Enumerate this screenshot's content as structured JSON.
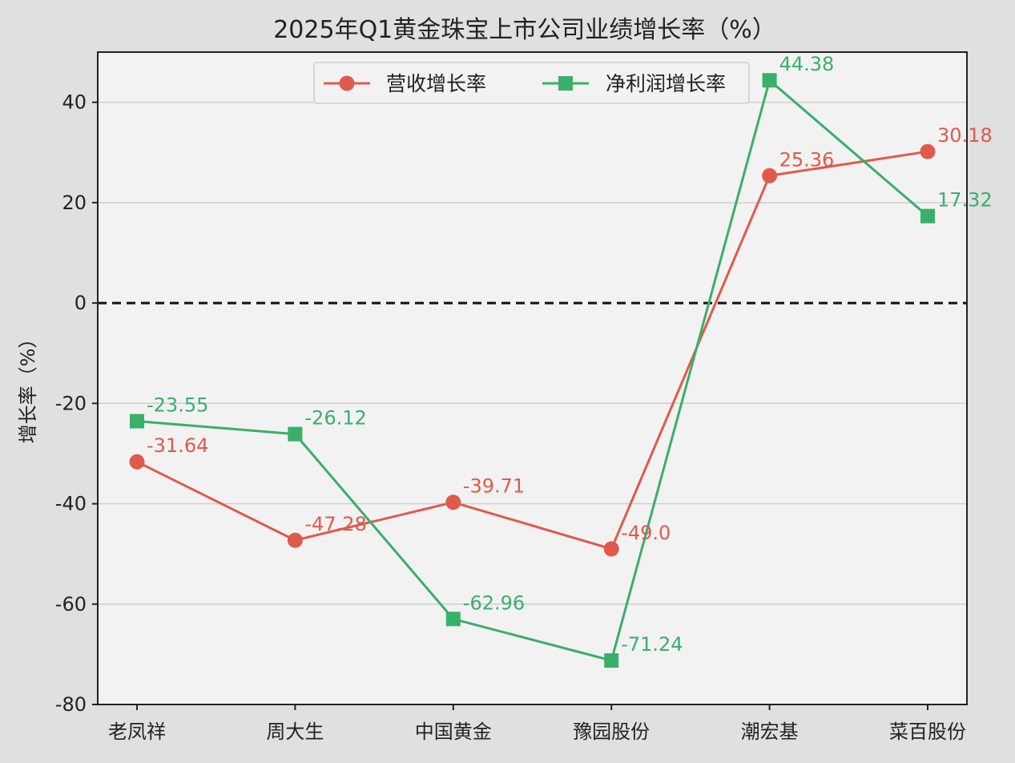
{
  "chart_data": {
    "type": "line",
    "title": "2025年Q1黄金珠宝上市公司业绩增长率（%）",
    "xlabel": "",
    "ylabel": "增长率（%）",
    "categories": [
      "老凤祥",
      "周大生",
      "中国黄金",
      "豫园股份",
      "潮宏基",
      "菜百股份"
    ],
    "ylim": [
      -80,
      50
    ],
    "yticks": [
      -80,
      -60,
      -40,
      -20,
      0,
      20,
      40
    ],
    "ytick_labels": [
      "-80",
      "-60",
      "-40",
      "-20",
      "0",
      "20",
      "40"
    ],
    "grid": "horizontal",
    "zero_line": "dashed",
    "legend_position": "top-center",
    "series": [
      {
        "name": "营收增长率",
        "color": "#e05a4c",
        "marker": "circle",
        "values": [
          -31.64,
          -47.28,
          -39.71,
          -49.0,
          25.36,
          30.18
        ],
        "value_labels": [
          "-31.64",
          "-47.28",
          "-39.71",
          "-49.0",
          "25.36",
          "30.18"
        ]
      },
      {
        "name": "净利润增长率",
        "color": "#3aaf6a",
        "marker": "square",
        "values": [
          -23.55,
          -26.12,
          -62.96,
          -71.24,
          44.38,
          17.32
        ],
        "value_labels": [
          "-23.55",
          "-26.12",
          "-62.96",
          "-71.24",
          "44.38",
          "17.32"
        ]
      }
    ]
  }
}
